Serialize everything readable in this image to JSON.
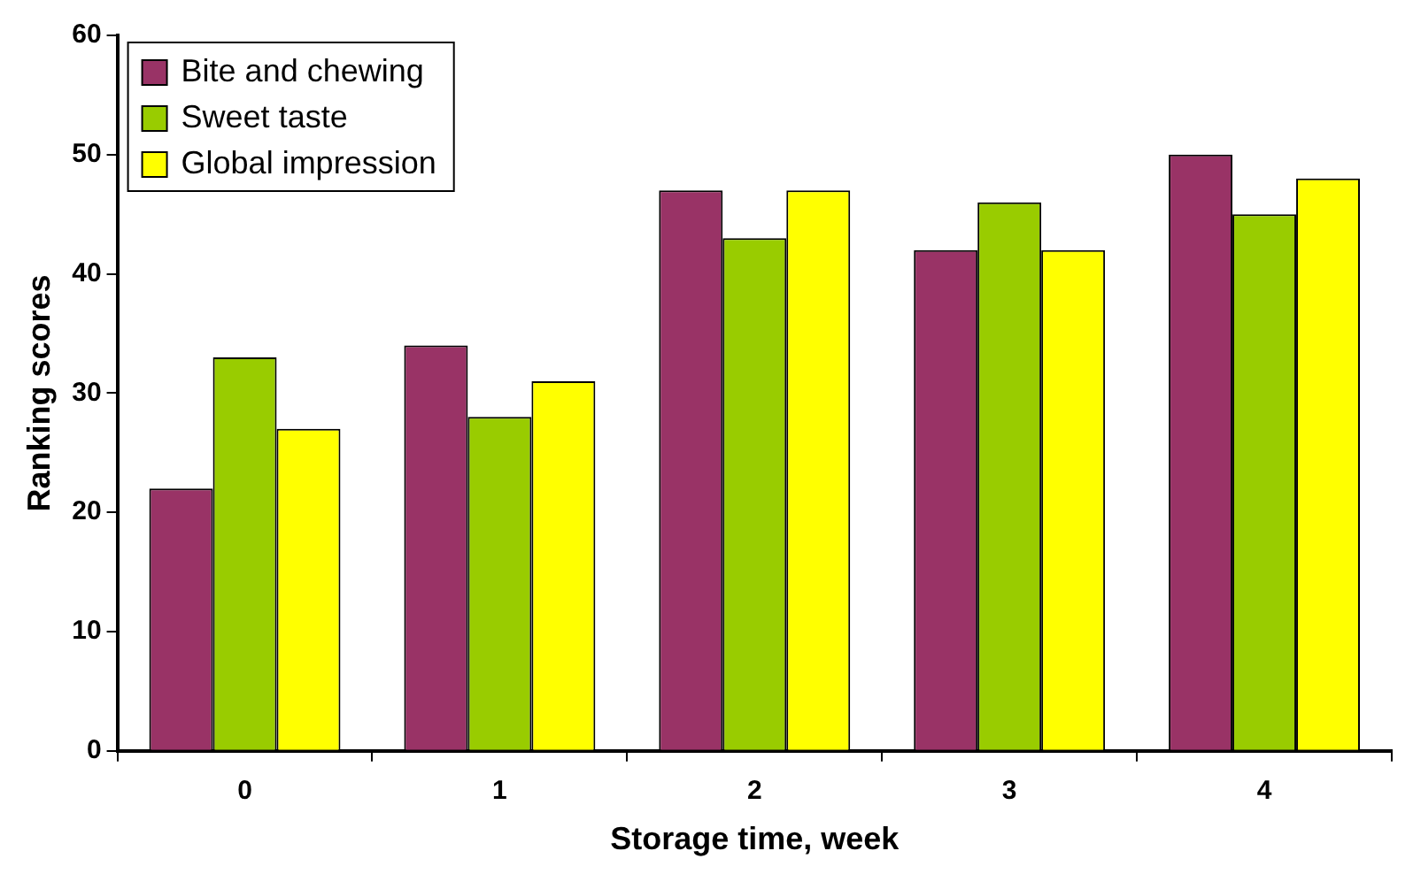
{
  "chart_data": {
    "type": "bar",
    "xlabel": "Storage time, week",
    "ylabel": "Ranking scores",
    "categories": [
      "0",
      "1",
      "2",
      "3",
      "4"
    ],
    "series": [
      {
        "name": "Bite and chewing",
        "color": "#993366",
        "values": [
          22,
          34,
          47,
          42,
          50
        ]
      },
      {
        "name": "Sweet taste",
        "color": "#99cc00",
        "values": [
          33,
          28,
          43,
          46,
          45
        ]
      },
      {
        "name": "Global impression",
        "color": "#ffff00",
        "values": [
          27,
          31,
          47,
          42,
          48
        ]
      }
    ],
    "ylim": [
      0,
      60
    ],
    "yticks": [
      0,
      10,
      20,
      30,
      40,
      50,
      60
    ],
    "grid": false,
    "legend": "top left"
  }
}
